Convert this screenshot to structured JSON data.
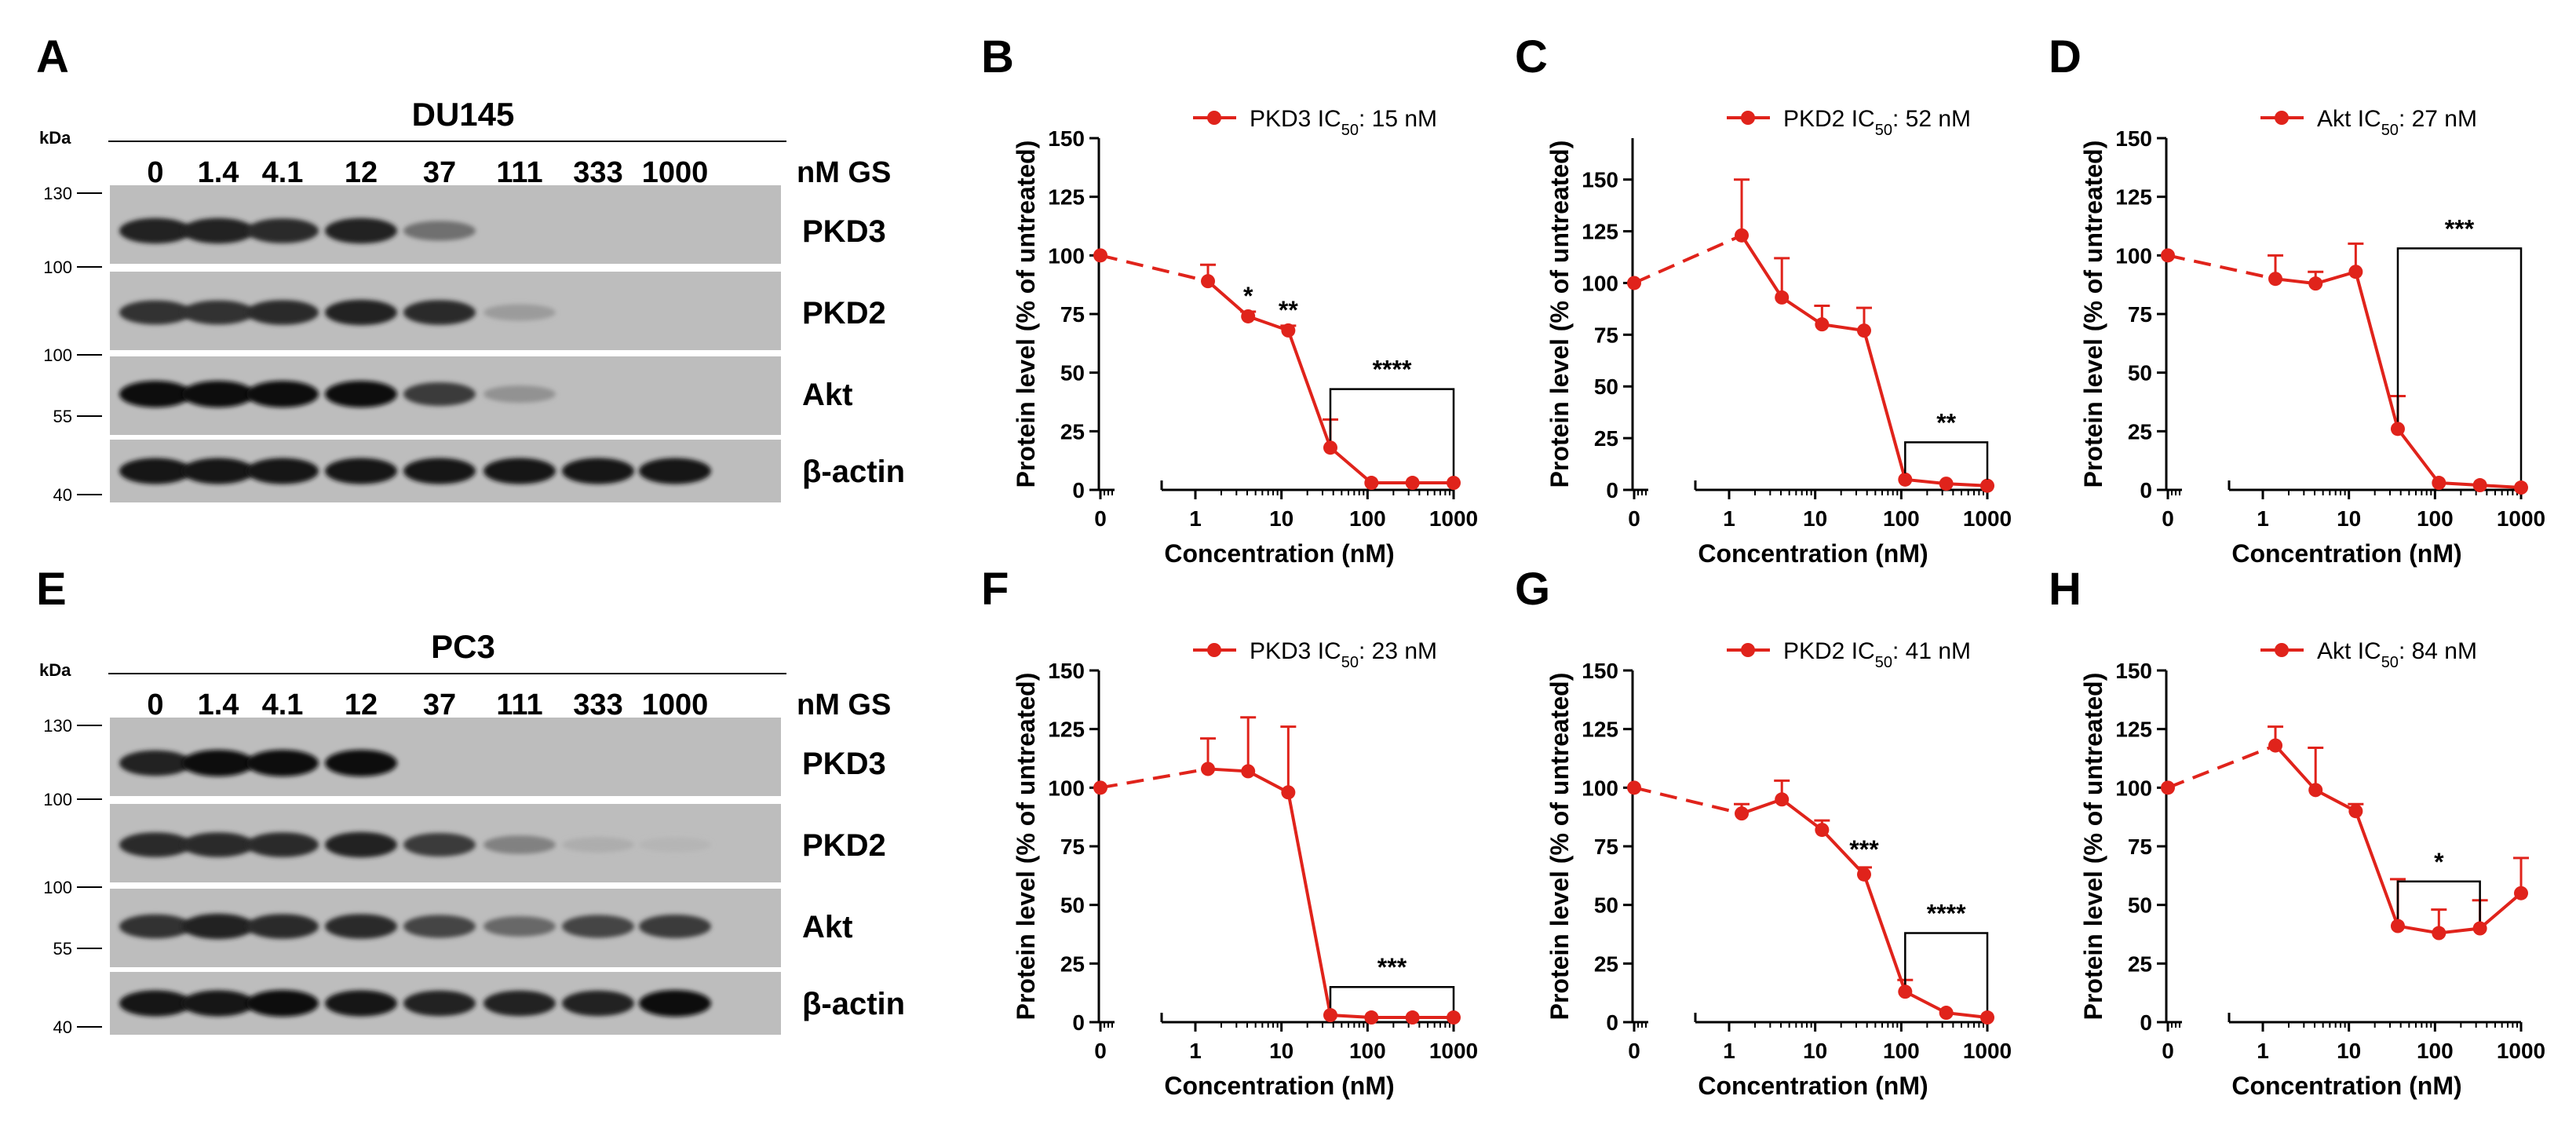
{
  "blots": [
    {
      "id": "blot-a",
      "letter": "A",
      "title": "DU145",
      "kda": "kDa",
      "unit": "nM GS",
      "lanes": [
        "0",
        "1.4",
        "4.1",
        "12",
        "37",
        "111",
        "333",
        "1000"
      ],
      "markers": [
        "130",
        "100",
        "100",
        "55",
        "40"
      ],
      "strips": [
        {
          "label": "PKD3",
          "intensity": [
            0.9,
            0.9,
            0.85,
            0.9,
            0.45,
            0.0,
            0.0,
            0.0
          ]
        },
        {
          "label": "PKD2",
          "intensity": [
            0.8,
            0.8,
            0.85,
            0.9,
            0.85,
            0.2,
            0.0,
            0.0
          ]
        },
        {
          "label": "Akt",
          "intensity": [
            1.0,
            1.0,
            1.0,
            1.0,
            0.75,
            0.25,
            0.0,
            0.0
          ]
        },
        {
          "label": "β-actin",
          "intensity": [
            0.95,
            0.95,
            0.95,
            0.95,
            0.95,
            0.95,
            0.95,
            0.95
          ]
        }
      ]
    },
    {
      "id": "blot-e",
      "letter": "E",
      "title": "PC3",
      "kda": "kDa",
      "unit": "nM GS",
      "lanes": [
        "0",
        "1.4",
        "4.1",
        "12",
        "37",
        "111",
        "333",
        "1000"
      ],
      "markers": [
        "130",
        "100",
        "100",
        "55",
        "40"
      ],
      "strips": [
        {
          "label": "PKD3",
          "intensity": [
            0.9,
            1.0,
            1.0,
            1.0,
            0.0,
            0.0,
            0.0,
            0.0
          ]
        },
        {
          "label": "PKD2",
          "intensity": [
            0.85,
            0.85,
            0.85,
            0.9,
            0.75,
            0.35,
            0.1,
            0.05
          ]
        },
        {
          "label": "Akt",
          "intensity": [
            0.8,
            0.9,
            0.85,
            0.85,
            0.7,
            0.5,
            0.7,
            0.75
          ]
        },
        {
          "label": "β-actin",
          "intensity": [
            0.95,
            0.95,
            1.0,
            0.95,
            0.9,
            0.9,
            0.9,
            1.0
          ]
        }
      ]
    }
  ],
  "chart_data": [
    {
      "id": "chart-b",
      "letter": "B",
      "type": "line",
      "series_name": "PKD3",
      "ic50_label": "IC",
      "ic50_sub": "50",
      "ic50_value": ": 15 nM",
      "xlabel": "Concentration (nM)",
      "ylabel": "Protein level (% of untreated)",
      "x_ticks": [
        "0",
        "1",
        "10",
        "100",
        "1000"
      ],
      "y_ticks": [
        0,
        25,
        50,
        75,
        100,
        125,
        150
      ],
      "ylim": [
        0,
        150
      ],
      "x": [
        0,
        1.4,
        4.1,
        12,
        37,
        111,
        333,
        1000
      ],
      "y": [
        100,
        89,
        74,
        68,
        18,
        3,
        3,
        3
      ],
      "err": [
        0,
        7,
        2,
        2,
        12,
        1,
        1,
        1
      ],
      "stars": [
        {
          "text": "*",
          "x": 4.1,
          "y": 79
        },
        {
          "text": "**",
          "x": 12,
          "y": 73
        }
      ],
      "bracket": {
        "x1": 37,
        "x2": 1000,
        "y": 43,
        "text": "****"
      }
    },
    {
      "id": "chart-c",
      "letter": "C",
      "type": "line",
      "series_name": "PKD2",
      "ic50_label": "IC",
      "ic50_sub": "50",
      "ic50_value": ": 52 nM",
      "xlabel": "Concentration (nM)",
      "ylabel": "Protein level (% of untreated)",
      "x_ticks": [
        "0",
        "1",
        "10",
        "100",
        "1000"
      ],
      "y_ticks": [
        0,
        25,
        50,
        75,
        100,
        125,
        150
      ],
      "ylim": [
        0,
        170
      ],
      "x": [
        0,
        1.4,
        4.1,
        12,
        37,
        111,
        333,
        1000
      ],
      "y": [
        100,
        123,
        93,
        80,
        77,
        5,
        3,
        2
      ],
      "err": [
        0,
        27,
        19,
        9,
        11,
        1,
        1,
        1
      ],
      "stars": [],
      "bracket": {
        "x1": 111,
        "x2": 1000,
        "y": 23,
        "text": "**"
      }
    },
    {
      "id": "chart-d",
      "letter": "D",
      "type": "line",
      "series_name": "Akt",
      "ic50_label": "IC",
      "ic50_sub": "50",
      "ic50_value": ": 27 nM",
      "xlabel": "Concentration (nM)",
      "ylabel": "Protein level (% of untreated)",
      "x_ticks": [
        "0",
        "1",
        "10",
        "100",
        "1000"
      ],
      "y_ticks": [
        0,
        25,
        50,
        75,
        100,
        125,
        150
      ],
      "ylim": [
        0,
        150
      ],
      "x": [
        0,
        1.4,
        4.1,
        12,
        37,
        111,
        333,
        1000
      ],
      "y": [
        100,
        90,
        88,
        93,
        26,
        3,
        2,
        1
      ],
      "err": [
        0,
        10,
        5,
        12,
        14,
        1,
        1,
        1
      ],
      "stars": [],
      "bracket": {
        "x1": 37,
        "x2": 1000,
        "y": 103,
        "text": "***"
      }
    },
    {
      "id": "chart-f",
      "letter": "F",
      "type": "line",
      "series_name": "PKD3",
      "ic50_label": "IC",
      "ic50_sub": "50",
      "ic50_value": ": 23 nM",
      "xlabel": "Concentration (nM)",
      "ylabel": "Protein level (% of untreated)",
      "x_ticks": [
        "0",
        "1",
        "10",
        "100",
        "1000"
      ],
      "y_ticks": [
        0,
        25,
        50,
        75,
        100,
        125,
        150
      ],
      "ylim": [
        0,
        150
      ],
      "x": [
        0,
        1.4,
        4.1,
        12,
        37,
        111,
        333,
        1000
      ],
      "y": [
        100,
        108,
        107,
        98,
        3,
        2,
        2,
        2
      ],
      "err": [
        0,
        13,
        23,
        28,
        1,
        1,
        1,
        1
      ],
      "stars": [],
      "bracket": {
        "x1": 37,
        "x2": 1000,
        "y": 15,
        "text": "***"
      }
    },
    {
      "id": "chart-g",
      "letter": "G",
      "type": "line",
      "series_name": "PKD2",
      "ic50_label": "IC",
      "ic50_sub": "50",
      "ic50_value": ": 41 nM",
      "xlabel": "Concentration (nM)",
      "ylabel": "Protein level (% of untreated)",
      "x_ticks": [
        "0",
        "1",
        "10",
        "100",
        "1000"
      ],
      "y_ticks": [
        0,
        25,
        50,
        75,
        100,
        125,
        150
      ],
      "ylim": [
        0,
        150
      ],
      "x": [
        0,
        1.4,
        4.1,
        12,
        37,
        111,
        333,
        1000
      ],
      "y": [
        100,
        89,
        95,
        82,
        63,
        13,
        4,
        2
      ],
      "err": [
        0,
        4,
        8,
        4,
        3,
        5,
        1,
        1
      ],
      "stars": [
        {
          "text": "***",
          "x": 37,
          "y": 70
        }
      ],
      "bracket": {
        "x1": 111,
        "x2": 1000,
        "y": 38,
        "text": "****"
      }
    },
    {
      "id": "chart-h",
      "letter": "H",
      "type": "line",
      "series_name": "Akt",
      "ic50_label": "IC",
      "ic50_sub": "50",
      "ic50_value": ": 84 nM",
      "xlabel": "Concentration (nM)",
      "ylabel": "Protein level (% of untreated)",
      "x_ticks": [
        "0",
        "1",
        "10",
        "100",
        "1000"
      ],
      "y_ticks": [
        0,
        25,
        50,
        75,
        100,
        125,
        150
      ],
      "ylim": [
        0,
        150
      ],
      "x": [
        0,
        1.4,
        4.1,
        12,
        37,
        111,
        333,
        1000
      ],
      "y": [
        100,
        118,
        99,
        90,
        41,
        38,
        40,
        55
      ],
      "err": [
        0,
        8,
        18,
        3,
        20,
        10,
        12,
        15
      ],
      "stars": [],
      "bracket": {
        "x1": 37,
        "x2": 333,
        "y": 60,
        "text": "*"
      }
    }
  ],
  "colors": {
    "series": "#e0231b",
    "ink": "#000000",
    "blot_bg": "#bdbdbd"
  }
}
